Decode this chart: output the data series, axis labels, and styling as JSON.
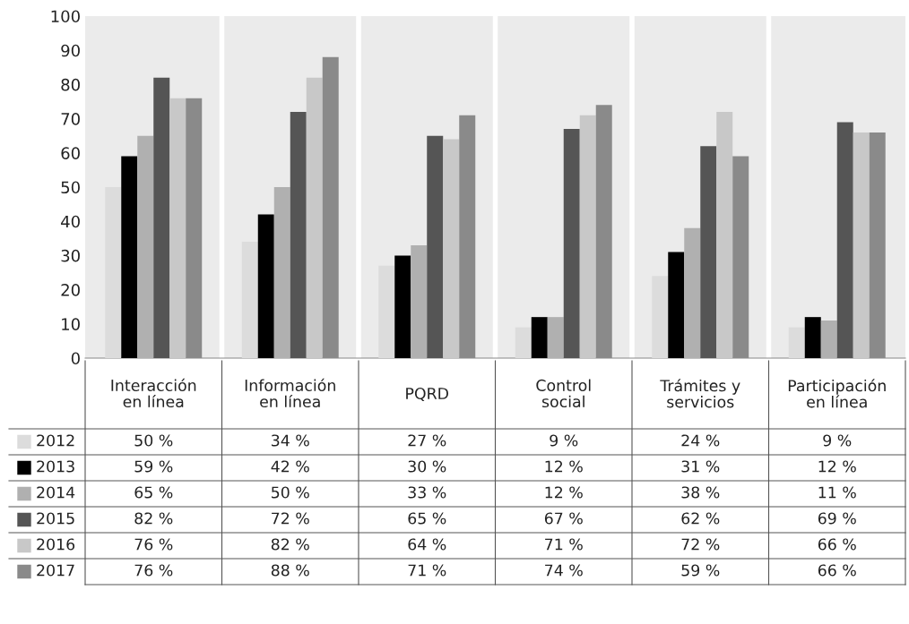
{
  "chart_data": {
    "type": "bar",
    "categories": [
      "Interacción\nen línea",
      "Información\nen línea",
      "PQRD",
      "Control\nsocial",
      "Trámites y\nservicios",
      "Participación\nen línea"
    ],
    "series": [
      {
        "name": "2012",
        "color": "#dcdcdc",
        "values": [
          50,
          34,
          27,
          9,
          24,
          9
        ],
        "value_labels": [
          "50 %",
          "34 %",
          "27 %",
          "9 %",
          "24 %",
          "9 %"
        ]
      },
      {
        "name": "2013",
        "color": "#000000",
        "values": [
          59,
          42,
          30,
          12,
          31,
          12
        ],
        "value_labels": [
          "59 %",
          "42 %",
          "30 %",
          "12 %",
          "31 %",
          "12 %"
        ]
      },
      {
        "name": "2014",
        "color": "#b0b0b0",
        "values": [
          65,
          50,
          33,
          12,
          38,
          11
        ],
        "value_labels": [
          "65 %",
          "50 %",
          "33 %",
          "12 %",
          "38 %",
          "11 %"
        ]
      },
      {
        "name": "2015",
        "color": "#555555",
        "values": [
          82,
          72,
          65,
          67,
          62,
          69
        ],
        "value_labels": [
          "82 %",
          "72 %",
          "65 %",
          "67 %",
          "62 %",
          "69 %"
        ]
      },
      {
        "name": "2016",
        "color": "#c8c8c8",
        "values": [
          76,
          82,
          64,
          71,
          72,
          66
        ],
        "value_labels": [
          "76 %",
          "82 %",
          "64 %",
          "71 %",
          "72 %",
          "66 %"
        ]
      },
      {
        "name": "2017",
        "color": "#8a8a8a",
        "values": [
          76,
          88,
          71,
          74,
          59,
          66
        ],
        "value_labels": [
          "76 %",
          "88 %",
          "71 %",
          "74 %",
          "59 %",
          "66 %"
        ]
      }
    ],
    "ylim": [
      0,
      100
    ],
    "yticks": [
      0,
      10,
      20,
      30,
      40,
      50,
      60,
      70,
      80,
      90,
      100
    ],
    "grid": false,
    "legend": "bottom left"
  }
}
